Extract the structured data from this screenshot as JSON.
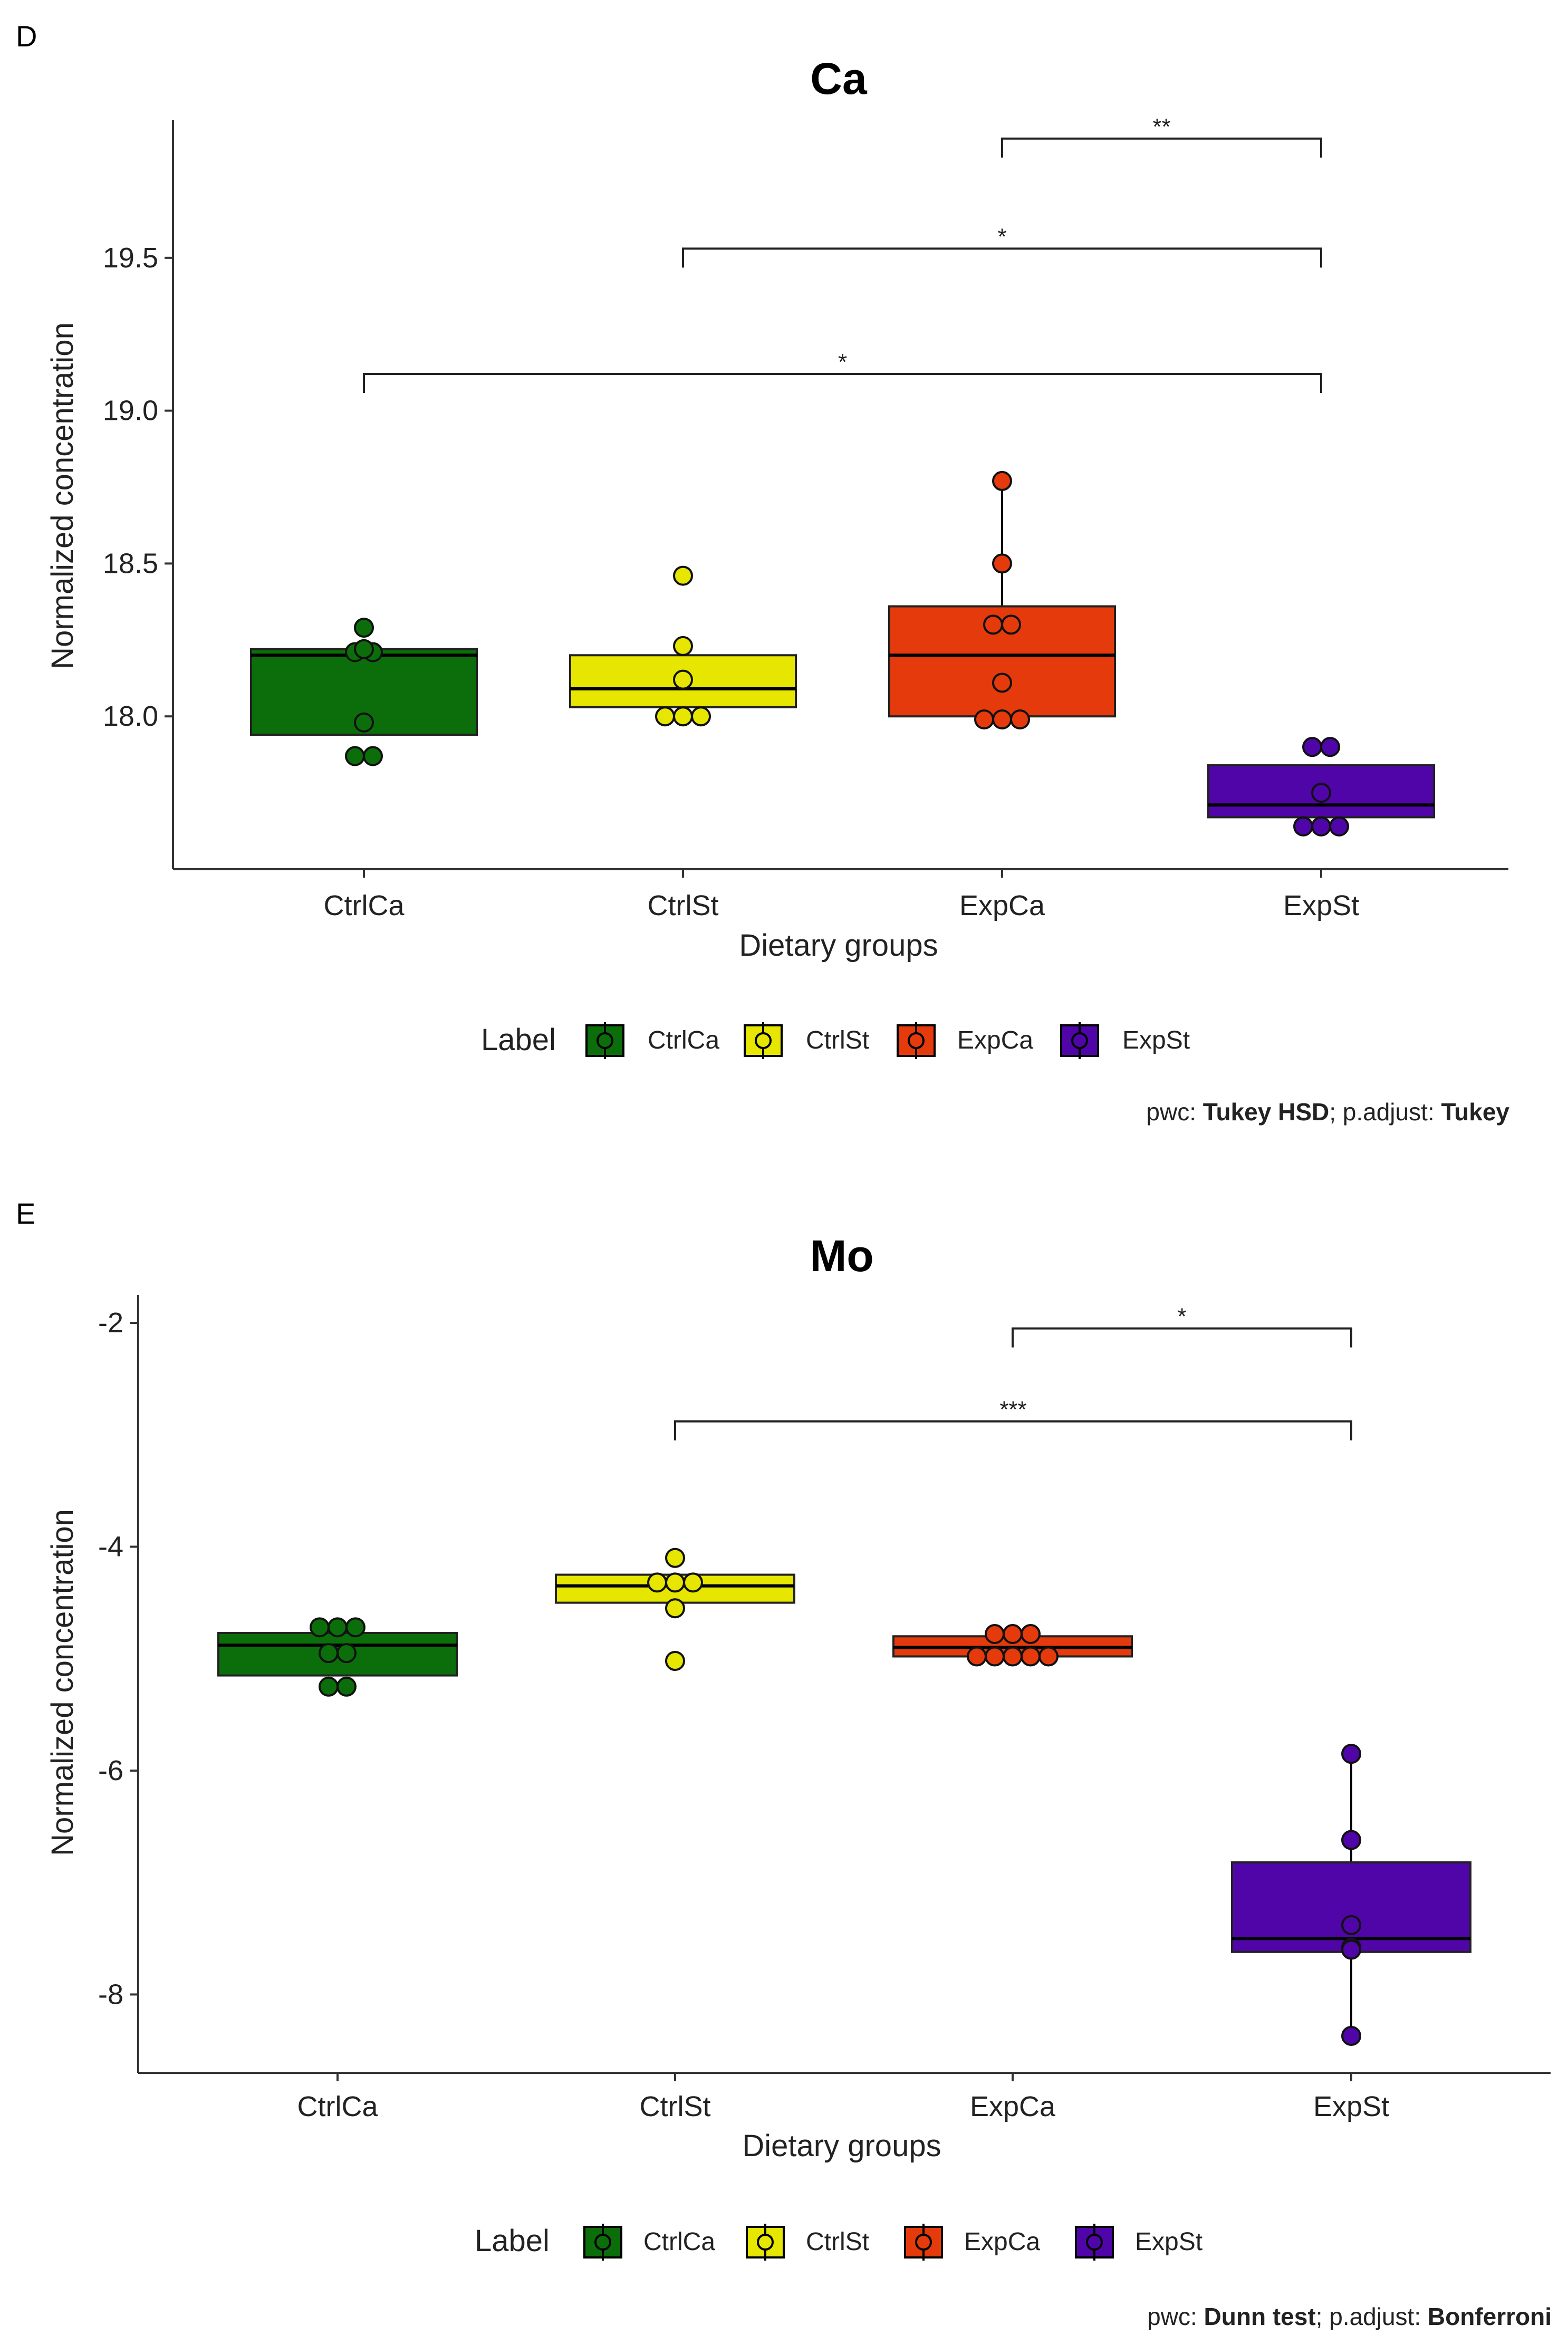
{
  "chart_data": [
    {
      "type": "box",
      "panel": "D",
      "title": "Ca",
      "xlabel": "Dietary groups",
      "ylabel": "Normalized concentration",
      "ylim": [
        17.5,
        19.95
      ],
      "yticks": [
        18.0,
        18.5,
        19.0,
        19.5
      ],
      "ytick_labels": [
        "18.0",
        "18.5",
        "19.0",
        "19.5"
      ],
      "categories": [
        "CtrlCa",
        "CtrlSt",
        "ExpCa",
        "ExpSt"
      ],
      "colors": [
        "#0b6e0b",
        "#e6e600",
        "#e53a0c",
        "#5005a8"
      ],
      "boxes": [
        {
          "group": "CtrlCa",
          "q1": 17.94,
          "median": 18.2,
          "q3": 18.22,
          "whisker_low": 17.94,
          "whisker_high": 18.22,
          "points": [
            17.87,
            17.87,
            17.98,
            18.21,
            18.21,
            18.22,
            18.29
          ]
        },
        {
          "group": "CtrlSt",
          "q1": 18.03,
          "median": 18.09,
          "q3": 18.2,
          "whisker_low": 18.03,
          "whisker_high": 18.2,
          "points": [
            18.0,
            18.0,
            18.0,
            18.12,
            18.23,
            18.46
          ]
        },
        {
          "group": "ExpCa",
          "q1": 18.0,
          "median": 18.2,
          "q3": 18.36,
          "whisker_low": 18.0,
          "whisker_high": 18.77,
          "points": [
            17.99,
            17.99,
            17.99,
            18.11,
            18.3,
            18.3,
            18.5,
            18.77
          ]
        },
        {
          "group": "ExpSt",
          "q1": 17.67,
          "median": 17.71,
          "q3": 17.84,
          "whisker_low": 17.67,
          "whisker_high": 17.84,
          "points": [
            17.64,
            17.64,
            17.64,
            17.75,
            17.9,
            17.9
          ]
        }
      ],
      "brackets": [
        {
          "from": "ExpCa",
          "to": "ExpSt",
          "y": 19.89,
          "label": "**"
        },
        {
          "from": "CtrlSt",
          "to": "ExpSt",
          "y": 19.53,
          "label": "*"
        },
        {
          "from": "CtrlCa",
          "to": "ExpSt",
          "y": 19.12,
          "label": "*"
        }
      ],
      "legend": {
        "title": "Label",
        "items": [
          "CtrlCa",
          "CtrlSt",
          "ExpCa",
          "ExpSt"
        ]
      },
      "caption": {
        "prefix1": "pwc: ",
        "bold1": "Tukey HSD",
        "prefix2": "; p.adjust: ",
        "bold2": "Tukey"
      }
    },
    {
      "type": "box",
      "panel": "E",
      "title": "Mo",
      "xlabel": "Dietary groups",
      "ylabel": "Normalized concentration",
      "ylim": [
        -8.7,
        -1.75
      ],
      "yticks": [
        -8,
        -6,
        -4,
        -2
      ],
      "ytick_labels": [
        "-8",
        "-6",
        "-4",
        "-2"
      ],
      "categories": [
        "CtrlCa",
        "CtrlSt",
        "ExpCa",
        "ExpSt"
      ],
      "colors": [
        "#0b6e0b",
        "#e6e600",
        "#e53a0c",
        "#5005a8"
      ],
      "boxes": [
        {
          "group": "CtrlCa",
          "q1": -5.15,
          "median": -4.88,
          "q3": -4.77,
          "whisker_low": -5.15,
          "whisker_high": -4.77,
          "points": [
            -4.72,
            -4.72,
            -4.72,
            -4.95,
            -4.95,
            -5.25,
            -5.25
          ]
        },
        {
          "group": "CtrlSt",
          "q1": -4.5,
          "median": -4.35,
          "q3": -4.25,
          "whisker_low": -4.5,
          "whisker_high": -4.25,
          "points": [
            -4.1,
            -4.32,
            -4.32,
            -4.32,
            -4.55,
            -5.02
          ]
        },
        {
          "group": "ExpCa",
          "q1": -4.98,
          "median": -4.9,
          "q3": -4.8,
          "whisker_low": -4.98,
          "whisker_high": -4.8,
          "points": [
            -4.78,
            -4.78,
            -4.78,
            -4.98,
            -4.98,
            -4.98,
            -4.98,
            -4.98
          ]
        },
        {
          "group": "ExpSt",
          "q1": -7.62,
          "median": -7.5,
          "q3": -6.82,
          "whisker_low": -8.37,
          "whisker_high": -5.85,
          "points": [
            -5.85,
            -6.62,
            -7.38,
            -7.58,
            -7.6,
            -8.37
          ]
        }
      ],
      "brackets": [
        {
          "from": "ExpCa",
          "to": "ExpSt",
          "y": -2.05,
          "label": "*"
        },
        {
          "from": "CtrlSt",
          "to": "ExpSt",
          "y": -2.88,
          "label": "***"
        }
      ],
      "legend": {
        "title": "Label",
        "items": [
          "CtrlCa",
          "CtrlSt",
          "ExpCa",
          "ExpSt"
        ]
      },
      "caption": {
        "prefix1": "pwc: ",
        "bold1": "Dunn test",
        "prefix2": "; p.adjust: ",
        "bold2": "Bonferroni"
      }
    }
  ]
}
